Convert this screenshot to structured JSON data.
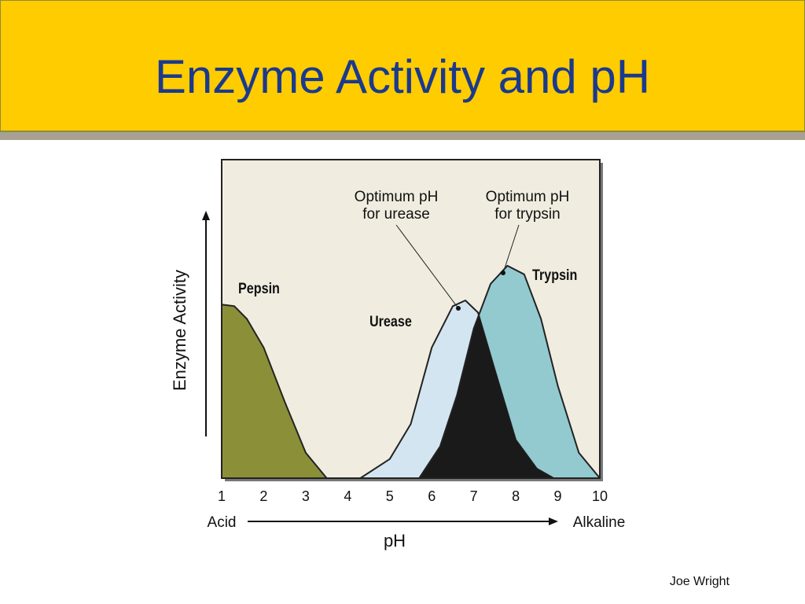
{
  "chart_data": {
    "type": "area",
    "title": "Enzyme Activity and pH",
    "x_label": "pH",
    "y_label": "Enzyme Activity",
    "x_left_label": "Acid",
    "x_right_label": "Alkaline",
    "xlim": [
      1,
      10
    ],
    "xticks": [
      1,
      2,
      3,
      4,
      5,
      6,
      7,
      8,
      9,
      10
    ],
    "ylim": [
      0,
      1
    ],
    "series": [
      {
        "name": "Pepsin",
        "color": "#8b9038",
        "x": [
          1,
          1.3,
          1.6,
          2,
          2.5,
          3,
          3.5
        ],
        "values": [
          0.545,
          0.54,
          0.5,
          0.41,
          0.24,
          0.08,
          0.0
        ]
      },
      {
        "name": "Trypsin",
        "color": "#92cad0",
        "x": [
          5.7,
          6.2,
          6.6,
          7,
          7.4,
          7.8,
          8.2,
          8.6,
          9,
          9.5,
          10
        ],
        "values": [
          0.0,
          0.1,
          0.26,
          0.47,
          0.61,
          0.667,
          0.64,
          0.5,
          0.29,
          0.08,
          0.0
        ]
      },
      {
        "name": "Urease",
        "color": "#d3e5f1",
        "x": [
          4.3,
          5,
          5.5,
          6,
          6.5,
          6.8,
          7.1,
          7.5,
          8,
          8.5,
          8.9
        ],
        "values": [
          0.0,
          0.06,
          0.17,
          0.41,
          0.54,
          0.558,
          0.52,
          0.34,
          0.12,
          0.03,
          0.0
        ]
      }
    ],
    "annotations": [
      {
        "lines": [
          "Optimum pH",
          "for urease"
        ]
      },
      {
        "lines": [
          "Optimum pH",
          "for trypsin"
        ]
      }
    ]
  },
  "footer": {
    "author": "Joe Wright"
  }
}
